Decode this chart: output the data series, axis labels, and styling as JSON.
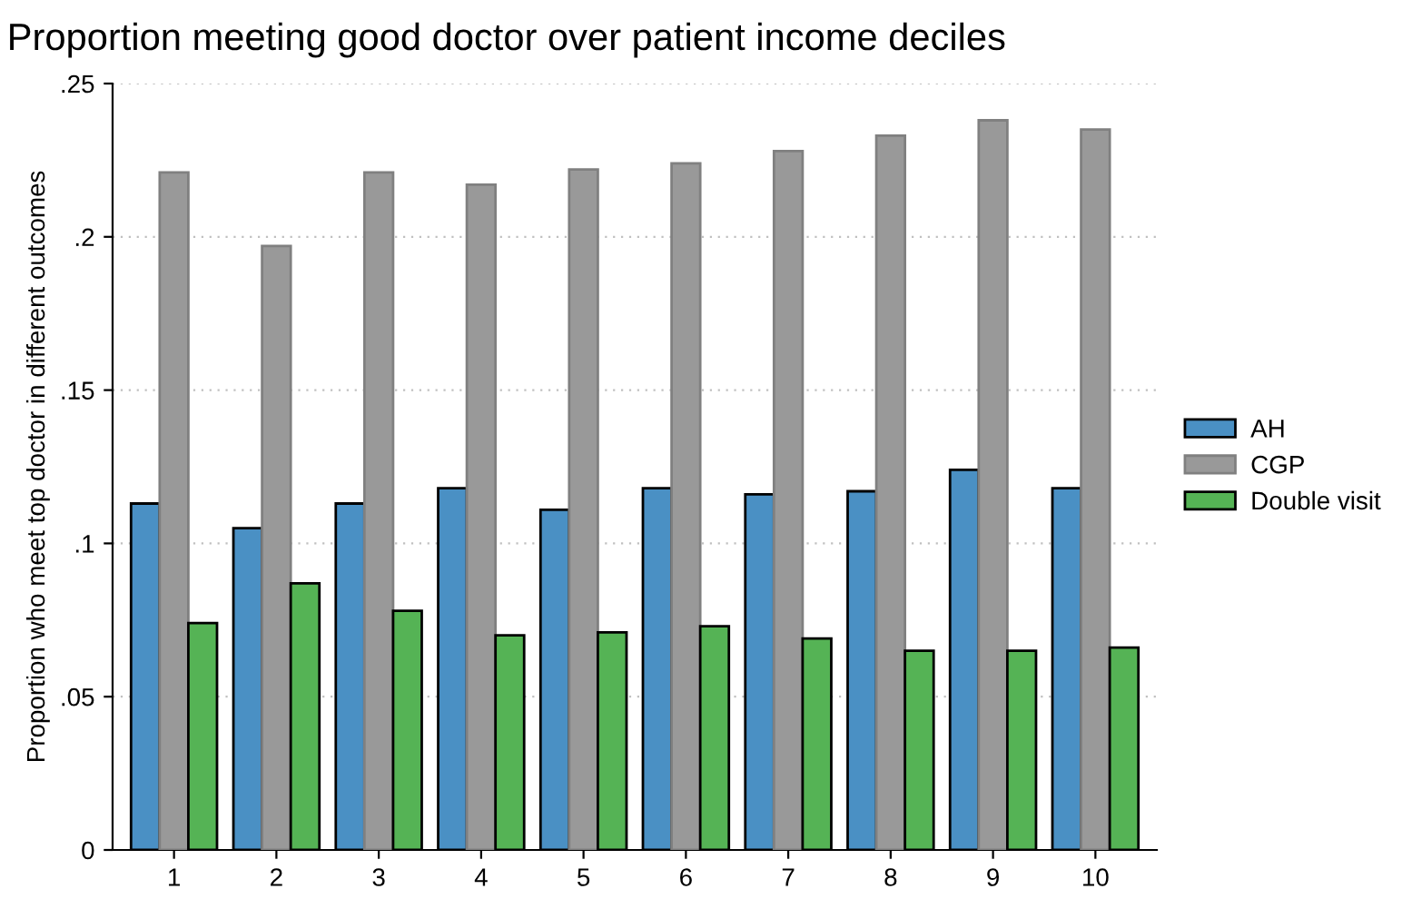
{
  "chart_data": {
    "type": "bar",
    "title": "Proportion meeting good doctor over patient income deciles",
    "ylabel": "Proportion who meet top doctor in different outcomes",
    "categories": [
      "1",
      "2",
      "3",
      "4",
      "5",
      "6",
      "7",
      "8",
      "9",
      "10"
    ],
    "series": [
      {
        "name": "AH",
        "color": "#4a90c4",
        "values": [
          0.113,
          0.105,
          0.113,
          0.118,
          0.111,
          0.118,
          0.116,
          0.117,
          0.124,
          0.118
        ]
      },
      {
        "name": "CGP",
        "color": "#999999",
        "values": [
          0.221,
          0.197,
          0.221,
          0.217,
          0.222,
          0.224,
          0.228,
          0.233,
          0.238,
          0.235
        ]
      },
      {
        "name": "Double visit",
        "color": "#55b355",
        "values": [
          0.074,
          0.087,
          0.078,
          0.07,
          0.071,
          0.073,
          0.069,
          0.065,
          0.065,
          0.066
        ]
      }
    ],
    "ylim": [
      0,
      0.25
    ],
    "yticks": [
      {
        "value": 0,
        "label": "0"
      },
      {
        "value": 0.05,
        "label": ".05"
      },
      {
        "value": 0.1,
        "label": ".1"
      },
      {
        "value": 0.15,
        "label": ".15"
      },
      {
        "value": 0.2,
        "label": ".2"
      },
      {
        "value": 0.25,
        "label": ".25"
      }
    ],
    "grid": "y",
    "legend": "right"
  }
}
